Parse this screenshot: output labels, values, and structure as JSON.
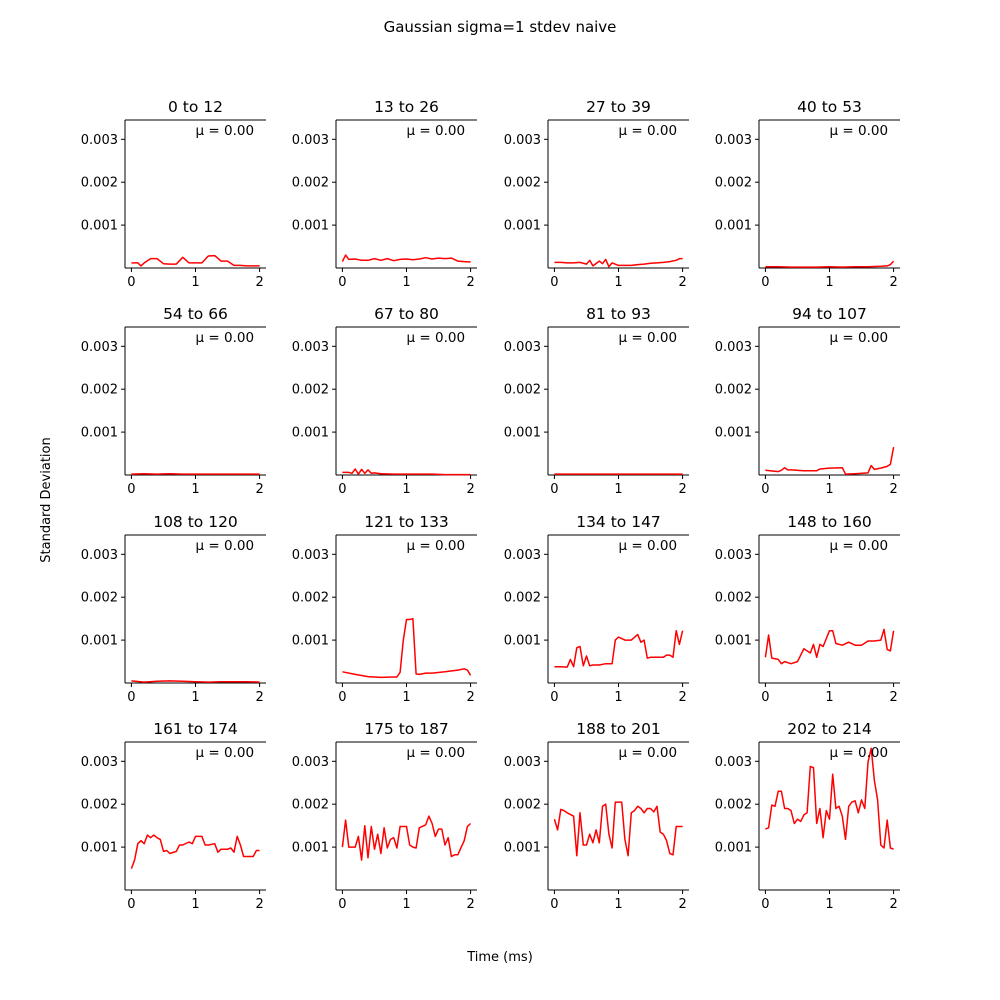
{
  "figure": {
    "title": "Gaussian sigma=1 stdev naive",
    "xlabel": "Time (ms)",
    "ylabel": "Standard Deviation"
  },
  "line_color": "#ff0000",
  "chart_data": {
    "type": "line",
    "layout": "4x4 small multiples",
    "xlim": [
      -0.1,
      2.1
    ],
    "ylim": [
      0,
      0.00345
    ],
    "xticks": [
      "0",
      "1",
      "2"
    ],
    "yticks": [
      "0.001",
      "0.002",
      "0.003"
    ],
    "grid": false,
    "panels": [
      {
        "title": "0 to 12",
        "annotation": "μ = 0.00",
        "x": [
          0,
          0.1,
          0.15,
          0.2,
          0.3,
          0.4,
          0.5,
          0.6,
          0.7,
          0.8,
          0.9,
          1.0,
          1.1,
          1.2,
          1.3,
          1.4,
          1.5,
          1.6,
          1.7,
          1.8,
          1.9,
          2.0
        ],
        "y": [
          0.00012,
          0.00012,
          5e-05,
          0.00012,
          0.00022,
          0.00022,
          0.0001,
          9e-05,
          9e-05,
          0.00025,
          0.00012,
          0.00012,
          0.00012,
          0.00028,
          0.00029,
          0.00016,
          0.00016,
          6e-05,
          6e-05,
          5e-05,
          5e-05,
          5e-05
        ]
      },
      {
        "title": "13 to 26",
        "annotation": "μ = 0.00",
        "x": [
          0,
          0.05,
          0.1,
          0.2,
          0.3,
          0.4,
          0.5,
          0.6,
          0.7,
          0.8,
          0.9,
          1.0,
          1.1,
          1.2,
          1.3,
          1.4,
          1.5,
          1.6,
          1.7,
          1.8,
          1.9,
          2.0
        ],
        "y": [
          0.00015,
          0.0003,
          0.0002,
          0.00021,
          0.00018,
          0.00018,
          0.00022,
          0.00018,
          0.00022,
          0.00017,
          0.0002,
          0.00021,
          0.00019,
          0.00021,
          0.00024,
          0.00021,
          0.00023,
          0.00022,
          0.00023,
          0.00016,
          0.00015,
          0.00014
        ]
      },
      {
        "title": "27 to 39",
        "annotation": "μ = 0.00",
        "x": [
          0,
          0.1,
          0.2,
          0.3,
          0.4,
          0.5,
          0.55,
          0.6,
          0.7,
          0.75,
          0.8,
          0.85,
          0.9,
          1.0,
          1.1,
          1.2,
          1.3,
          1.4,
          1.5,
          1.6,
          1.7,
          1.8,
          1.9,
          1.95,
          2.0
        ],
        "y": [
          0.00013,
          0.00013,
          0.00012,
          0.00012,
          0.00013,
          9e-05,
          0.00018,
          5e-05,
          0.00016,
          0.0001,
          0.0002,
          3e-05,
          0.00012,
          6e-05,
          6e-05,
          6e-05,
          8e-05,
          9e-05,
          0.00011,
          0.00012,
          0.00013,
          0.00015,
          0.00018,
          0.00022,
          0.00022
        ]
      },
      {
        "title": "40 to 53",
        "annotation": "μ = 0.00",
        "x": [
          0,
          0.2,
          0.4,
          0.6,
          0.8,
          1.0,
          1.2,
          1.4,
          1.6,
          1.8,
          1.9,
          1.95,
          2.0
        ],
        "y": [
          3e-05,
          3e-05,
          2e-05,
          2e-05,
          2e-05,
          3e-05,
          2e-05,
          3e-05,
          3e-05,
          4e-05,
          5e-05,
          8e-05,
          0.00016
        ]
      },
      {
        "title": "54 to 66",
        "annotation": "μ = 0.00",
        "x": [
          0,
          0.2,
          0.4,
          0.6,
          0.8,
          1.0,
          1.2,
          1.4,
          1.6,
          1.8,
          2.0
        ],
        "y": [
          2e-05,
          3e-05,
          2e-05,
          3e-05,
          2e-05,
          2e-05,
          2e-05,
          2e-05,
          2e-05,
          2e-05,
          2e-05
        ]
      },
      {
        "title": "67 to 80",
        "annotation": "μ = 0.00",
        "x": [
          0,
          0.1,
          0.15,
          0.2,
          0.25,
          0.3,
          0.35,
          0.4,
          0.45,
          0.5,
          0.6,
          0.8,
          1.0,
          1.2,
          1.4,
          1.6,
          1.8,
          2.0
        ],
        "y": [
          6e-05,
          6e-05,
          4e-05,
          0.00014,
          2e-05,
          0.00013,
          4e-05,
          0.00012,
          4e-05,
          5e-05,
          3e-05,
          2e-05,
          2e-05,
          2e-05,
          2e-05,
          1e-05,
          1e-05,
          1e-05
        ]
      },
      {
        "title": "81 to 93",
        "annotation": "μ = 0.00",
        "x": [
          0,
          0.2,
          0.4,
          0.6,
          0.8,
          1.0,
          1.2,
          1.4,
          1.6,
          1.8,
          2.0
        ],
        "y": [
          2e-05,
          2e-05,
          2e-05,
          2e-05,
          2e-05,
          2e-05,
          2e-05,
          2e-05,
          2e-05,
          2e-05,
          2e-05
        ]
      },
      {
        "title": "94 to 107",
        "annotation": "μ = 0.00",
        "x": [
          0,
          0.2,
          0.25,
          0.3,
          0.35,
          0.4,
          0.6,
          0.8,
          0.85,
          1.0,
          1.2,
          1.25,
          1.4,
          1.6,
          1.65,
          1.7,
          1.8,
          1.9,
          1.95,
          2.0
        ],
        "y": [
          0.00011,
          8e-05,
          0.00011,
          0.00017,
          0.00012,
          0.00012,
          0.0001,
          0.0001,
          0.00014,
          0.00016,
          0.00017,
          2e-05,
          3e-05,
          5e-05,
          0.00022,
          0.00013,
          0.00016,
          0.0002,
          0.00025,
          0.00065
        ]
      },
      {
        "title": "108 to 120",
        "annotation": "μ = 0.00",
        "x": [
          0,
          0.2,
          0.4,
          0.6,
          0.8,
          1.0,
          1.2,
          1.4,
          1.6,
          1.8,
          2.0
        ],
        "y": [
          5e-05,
          2e-05,
          4e-05,
          5e-05,
          4e-05,
          3e-05,
          2e-05,
          3e-05,
          3e-05,
          3e-05,
          2e-05
        ]
      },
      {
        "title": "121 to 133",
        "annotation": "μ = 0.00",
        "x": [
          0,
          0.2,
          0.4,
          0.6,
          0.8,
          0.85,
          0.9,
          0.95,
          1.0,
          1.05,
          1.1,
          1.15,
          1.2,
          1.3,
          1.4,
          1.6,
          1.8,
          1.9,
          1.95,
          2.0
        ],
        "y": [
          0.00026,
          0.0002,
          0.00015,
          0.00013,
          0.00014,
          0.00014,
          0.00025,
          0.001,
          0.00148,
          0.00148,
          0.0015,
          0.00021,
          0.0002,
          0.00023,
          0.00023,
          0.00026,
          0.0003,
          0.00033,
          0.0003,
          0.00018
        ]
      },
      {
        "title": "134 to 147",
        "annotation": "μ = 0.00",
        "x": [
          0,
          0.1,
          0.2,
          0.25,
          0.3,
          0.35,
          0.4,
          0.45,
          0.5,
          0.55,
          0.6,
          0.7,
          0.8,
          0.9,
          0.95,
          1.0,
          1.1,
          1.15,
          1.2,
          1.3,
          1.35,
          1.4,
          1.45,
          1.5,
          1.6,
          1.7,
          1.75,
          1.8,
          1.85,
          1.9,
          1.95,
          2.0
        ],
        "y": [
          0.00038,
          0.00038,
          0.00037,
          0.00055,
          0.00038,
          0.00082,
          0.00085,
          0.0004,
          0.00063,
          0.0004,
          0.00042,
          0.00042,
          0.00045,
          0.00045,
          0.001,
          0.00107,
          0.001,
          0.001,
          0.001,
          0.00113,
          0.00095,
          0.001,
          0.00058,
          0.0006,
          0.0006,
          0.0006,
          0.00065,
          0.00065,
          0.0006,
          0.00122,
          0.0009,
          0.00122
        ]
      },
      {
        "title": "148 to 160",
        "annotation": "μ = 0.00",
        "x": [
          0,
          0.05,
          0.1,
          0.2,
          0.25,
          0.3,
          0.4,
          0.5,
          0.6,
          0.7,
          0.75,
          0.8,
          0.85,
          0.9,
          1.0,
          1.05,
          1.1,
          1.2,
          1.3,
          1.4,
          1.5,
          1.6,
          1.7,
          1.8,
          1.85,
          1.9,
          1.95,
          2.0
        ],
        "y": [
          0.0006,
          0.00112,
          0.00058,
          0.00055,
          0.00045,
          0.0005,
          0.00045,
          0.0005,
          0.0008,
          0.0007,
          0.0009,
          0.0006,
          0.0009,
          0.00085,
          0.00122,
          0.00122,
          0.00092,
          0.00088,
          0.00095,
          0.00088,
          0.00088,
          0.00098,
          0.00098,
          0.001,
          0.00125,
          0.00078,
          0.00075,
          0.00122
        ]
      },
      {
        "title": "161 to 174",
        "annotation": "μ = 0.00",
        "x": [
          0,
          0.05,
          0.1,
          0.15,
          0.2,
          0.25,
          0.3,
          0.35,
          0.4,
          0.45,
          0.5,
          0.55,
          0.6,
          0.7,
          0.75,
          0.8,
          0.9,
          0.95,
          1.0,
          1.1,
          1.15,
          1.2,
          1.3,
          1.35,
          1.4,
          1.5,
          1.55,
          1.6,
          1.65,
          1.7,
          1.75,
          1.8,
          1.9,
          1.95,
          2.0
        ],
        "y": [
          0.0005,
          0.0007,
          0.00108,
          0.00115,
          0.00108,
          0.00128,
          0.00122,
          0.00128,
          0.00122,
          0.00118,
          0.0009,
          0.00092,
          0.00085,
          0.0009,
          0.00105,
          0.00105,
          0.00112,
          0.00108,
          0.00125,
          0.00125,
          0.00105,
          0.00105,
          0.00108,
          0.00088,
          0.00095,
          0.00095,
          0.00098,
          0.00088,
          0.00125,
          0.00105,
          0.00078,
          0.00078,
          0.00078,
          0.00092,
          0.00092
        ]
      },
      {
        "title": "175 to 187",
        "annotation": "μ = 0.00",
        "x": [
          0,
          0.05,
          0.1,
          0.15,
          0.2,
          0.25,
          0.3,
          0.35,
          0.4,
          0.45,
          0.5,
          0.55,
          0.6,
          0.65,
          0.7,
          0.75,
          0.8,
          0.85,
          0.9,
          1.0,
          1.05,
          1.1,
          1.15,
          1.2,
          1.3,
          1.35,
          1.4,
          1.45,
          1.5,
          1.55,
          1.6,
          1.65,
          1.7,
          1.75,
          1.8,
          1.9,
          1.95,
          2.0
        ],
        "y": [
          0.001,
          0.00163,
          0.001,
          0.001,
          0.001,
          0.00125,
          0.0007,
          0.0015,
          0.00075,
          0.00148,
          0.00095,
          0.0013,
          0.00085,
          0.00145,
          0.00098,
          0.00118,
          0.00122,
          0.00098,
          0.00148,
          0.00148,
          0.00105,
          0.001,
          0.00098,
          0.00145,
          0.00152,
          0.00172,
          0.00155,
          0.00125,
          0.00142,
          0.00142,
          0.00105,
          0.00122,
          0.00078,
          0.00082,
          0.00082,
          0.00115,
          0.00148,
          0.00155
        ]
      },
      {
        "title": "188 to 201",
        "annotation": "μ = 0.00",
        "x": [
          0,
          0.05,
          0.1,
          0.15,
          0.2,
          0.3,
          0.35,
          0.4,
          0.45,
          0.5,
          0.55,
          0.6,
          0.65,
          0.7,
          0.75,
          0.8,
          0.85,
          0.9,
          0.95,
          1.0,
          1.05,
          1.1,
          1.15,
          1.2,
          1.25,
          1.3,
          1.35,
          1.4,
          1.45,
          1.5,
          1.55,
          1.6,
          1.65,
          1.7,
          1.75,
          1.8,
          1.85,
          1.9,
          1.95,
          2.0
        ],
        "y": [
          0.00165,
          0.0014,
          0.00188,
          0.00185,
          0.0018,
          0.00172,
          0.0008,
          0.0018,
          0.00105,
          0.00105,
          0.0013,
          0.0011,
          0.0014,
          0.0011,
          0.00195,
          0.002,
          0.0013,
          0.00098,
          0.00205,
          0.00205,
          0.00205,
          0.00118,
          0.0008,
          0.0018,
          0.00185,
          0.00195,
          0.0019,
          0.0018,
          0.0019,
          0.0019,
          0.00182,
          0.00195,
          0.00135,
          0.0013,
          0.00115,
          0.00085,
          0.00082,
          0.00148,
          0.00148,
          0.00148
        ]
      },
      {
        "title": "202 to 214",
        "annotation": "μ = 0.00",
        "x": [
          0,
          0.05,
          0.1,
          0.15,
          0.2,
          0.25,
          0.3,
          0.35,
          0.4,
          0.45,
          0.5,
          0.55,
          0.6,
          0.65,
          0.7,
          0.75,
          0.8,
          0.85,
          0.9,
          0.95,
          1.0,
          1.05,
          1.1,
          1.15,
          1.2,
          1.25,
          1.3,
          1.35,
          1.4,
          1.45,
          1.5,
          1.55,
          1.6,
          1.65,
          1.7,
          1.75,
          1.8,
          1.85,
          1.9,
          1.95,
          2.0
        ],
        "y": [
          0.00142,
          0.00145,
          0.00198,
          0.00195,
          0.0023,
          0.0023,
          0.0019,
          0.0019,
          0.00185,
          0.00155,
          0.00165,
          0.0016,
          0.00175,
          0.0018,
          0.00288,
          0.00285,
          0.00155,
          0.0019,
          0.00122,
          0.00185,
          0.00165,
          0.0027,
          0.0019,
          0.00195,
          0.00172,
          0.00118,
          0.00195,
          0.00205,
          0.00208,
          0.0018,
          0.0021,
          0.0019,
          0.00298,
          0.0033,
          0.00255,
          0.0021,
          0.00105,
          0.00098,
          0.00163,
          0.00098,
          0.00095
        ]
      }
    ]
  }
}
